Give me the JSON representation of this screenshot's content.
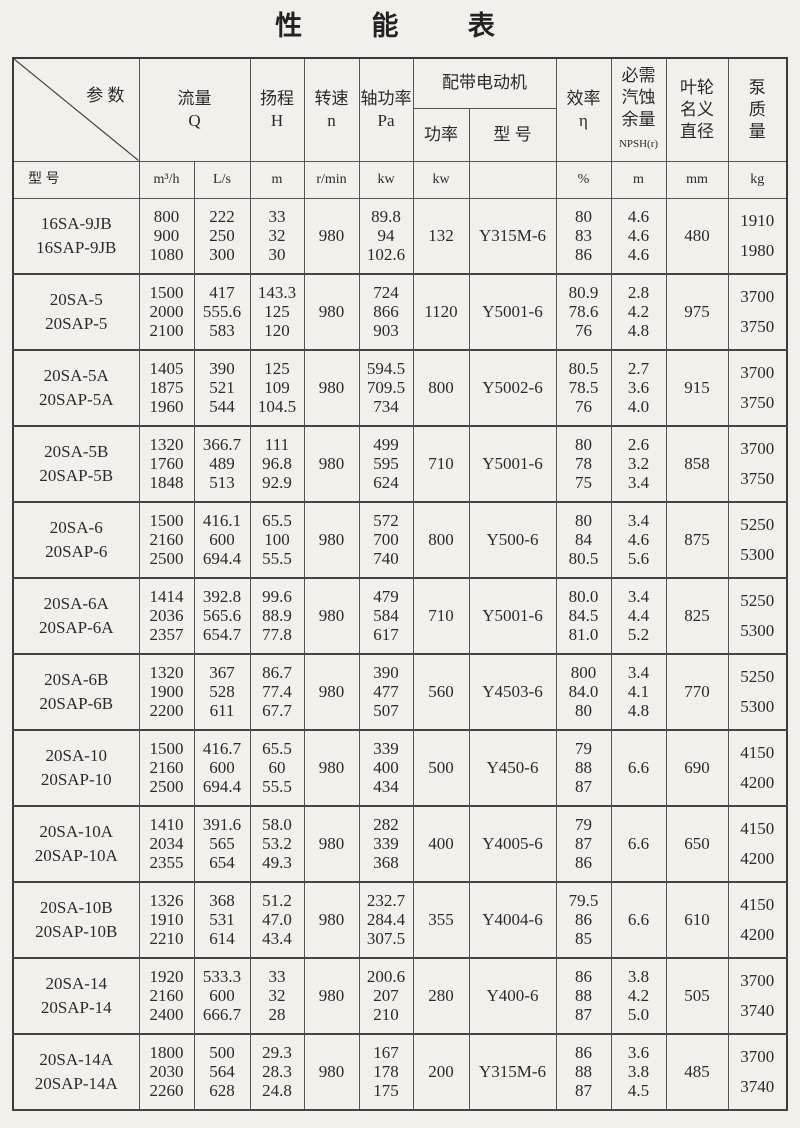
{
  "title": "性 能 表",
  "header": {
    "param": "参 数",
    "model": "型 号",
    "flow": "流量\nQ",
    "head": "扬程\nH",
    "speed": "转速\nn",
    "shaft_power": "轴功率\nPa",
    "motor": "配带电动机",
    "motor_power": "功率",
    "motor_model": "型 号",
    "efficiency": "效率\nη",
    "npsh": "必需\n汽蚀\n余量",
    "npsh_sub": "NPSH(r)",
    "impeller": "叶轮\n名义\n直径",
    "mass": "泵\n质\n量"
  },
  "units": [
    "m³/h",
    "L/s",
    "m",
    "r/min",
    "kw",
    "kw",
    "",
    "%",
    "m",
    "mm",
    "kg"
  ],
  "rows": [
    {
      "model": [
        "16SA-9JB",
        "16SAP-9JB"
      ],
      "q_m3h": [
        "800",
        "900",
        "1080"
      ],
      "q_ls": [
        "222",
        "250",
        "300"
      ],
      "head": [
        "33",
        "32",
        "30"
      ],
      "speed": "980",
      "power": [
        "89.8",
        "94",
        "102.6"
      ],
      "motor_kw": "132",
      "motor_model": "Y315M-6",
      "eff": [
        "80",
        "83",
        "86"
      ],
      "npsh": [
        "4.6",
        "4.6",
        "4.6"
      ],
      "impeller": "480",
      "mass": [
        "1910",
        "1980"
      ]
    },
    {
      "model": [
        "20SA-5",
        "20SAP-5"
      ],
      "q_m3h": [
        "1500",
        "2000",
        "2100"
      ],
      "q_ls": [
        "417",
        "555.6",
        "583"
      ],
      "head": [
        "143.3",
        "125",
        "120"
      ],
      "speed": "980",
      "power": [
        "724",
        "866",
        "903"
      ],
      "motor_kw": "1120",
      "motor_model": "Y5001-6",
      "eff": [
        "80.9",
        "78.6",
        "76"
      ],
      "npsh": [
        "2.8",
        "4.2",
        "4.8"
      ],
      "impeller": "975",
      "mass": [
        "3700",
        "3750"
      ]
    },
    {
      "model": [
        "20SA-5A",
        "20SAP-5A"
      ],
      "q_m3h": [
        "1405",
        "1875",
        "1960"
      ],
      "q_ls": [
        "390",
        "521",
        "544"
      ],
      "head": [
        "125",
        "109",
        "104.5"
      ],
      "speed": "980",
      "power": [
        "594.5",
        "709.5",
        "734"
      ],
      "motor_kw": "800",
      "motor_model": "Y5002-6",
      "eff": [
        "80.5",
        "78.5",
        "76"
      ],
      "npsh": [
        "2.7",
        "3.6",
        "4.0"
      ],
      "impeller": "915",
      "mass": [
        "3700",
        "3750"
      ]
    },
    {
      "model": [
        "20SA-5B",
        "20SAP-5B"
      ],
      "q_m3h": [
        "1320",
        "1760",
        "1848"
      ],
      "q_ls": [
        "366.7",
        "489",
        "513"
      ],
      "head": [
        "111",
        "96.8",
        "92.9"
      ],
      "speed": "980",
      "power": [
        "499",
        "595",
        "624"
      ],
      "motor_kw": "710",
      "motor_model": "Y5001-6",
      "eff": [
        "80",
        "78",
        "75"
      ],
      "npsh": [
        "2.6",
        "3.2",
        "3.4"
      ],
      "impeller": "858",
      "mass": [
        "3700",
        "3750"
      ]
    },
    {
      "model": [
        "20SA-6",
        "20SAP-6"
      ],
      "q_m3h": [
        "1500",
        "2160",
        "2500"
      ],
      "q_ls": [
        "416.1",
        "600",
        "694.4"
      ],
      "head": [
        "65.5",
        "100",
        "55.5"
      ],
      "speed": "980",
      "power": [
        "572",
        "700",
        "740"
      ],
      "motor_kw": "800",
      "motor_model": "Y500-6",
      "eff": [
        "80",
        "84",
        "80.5"
      ],
      "npsh": [
        "3.4",
        "4.6",
        "5.6"
      ],
      "impeller": "875",
      "mass": [
        "5250",
        "5300"
      ]
    },
    {
      "model": [
        "20SA-6A",
        "20SAP-6A"
      ],
      "q_m3h": [
        "1414",
        "2036",
        "2357"
      ],
      "q_ls": [
        "392.8",
        "565.6",
        "654.7"
      ],
      "head": [
        "99.6",
        "88.9",
        "77.8"
      ],
      "speed": "980",
      "power": [
        "479",
        "584",
        "617"
      ],
      "motor_kw": "710",
      "motor_model": "Y5001-6",
      "eff": [
        "80.0",
        "84.5",
        "81.0"
      ],
      "npsh": [
        "3.4",
        "4.4",
        "5.2"
      ],
      "impeller": "825",
      "mass": [
        "5250",
        "5300"
      ]
    },
    {
      "model": [
        "20SA-6B",
        "20SAP-6B"
      ],
      "q_m3h": [
        "1320",
        "1900",
        "2200"
      ],
      "q_ls": [
        "367",
        "528",
        "611"
      ],
      "head": [
        "86.7",
        "77.4",
        "67.7"
      ],
      "speed": "980",
      "power": [
        "390",
        "477",
        "507"
      ],
      "motor_kw": "560",
      "motor_model": "Y4503-6",
      "eff": [
        "800",
        "84.0",
        "80"
      ],
      "npsh": [
        "3.4",
        "4.1",
        "4.8"
      ],
      "impeller": "770",
      "mass": [
        "5250",
        "5300"
      ]
    },
    {
      "model": [
        "20SA-10",
        "20SAP-10"
      ],
      "q_m3h": [
        "1500",
        "2160",
        "2500"
      ],
      "q_ls": [
        "416.7",
        "600",
        "694.4"
      ],
      "head": [
        "65.5",
        "60",
        "55.5"
      ],
      "speed": "980",
      "power": [
        "339",
        "400",
        "434"
      ],
      "motor_kw": "500",
      "motor_model": "Y450-6",
      "eff": [
        "79",
        "88",
        "87"
      ],
      "npsh": [
        "6.6"
      ],
      "impeller": "690",
      "mass": [
        "4150",
        "4200"
      ]
    },
    {
      "model": [
        "20SA-10A",
        "20SAP-10A"
      ],
      "q_m3h": [
        "1410",
        "2034",
        "2355"
      ],
      "q_ls": [
        "391.6",
        "565",
        "654"
      ],
      "head": [
        "58.0",
        "53.2",
        "49.3"
      ],
      "speed": "980",
      "power": [
        "282",
        "339",
        "368"
      ],
      "motor_kw": "400",
      "motor_model": "Y4005-6",
      "eff": [
        "79",
        "87",
        "86"
      ],
      "npsh": [
        "6.6"
      ],
      "impeller": "650",
      "mass": [
        "4150",
        "4200"
      ]
    },
    {
      "model": [
        "20SA-10B",
        "20SAP-10B"
      ],
      "q_m3h": [
        "1326",
        "1910",
        "2210"
      ],
      "q_ls": [
        "368",
        "531",
        "614"
      ],
      "head": [
        "51.2",
        "47.0",
        "43.4"
      ],
      "speed": "980",
      "power": [
        "232.7",
        "284.4",
        "307.5"
      ],
      "motor_kw": "355",
      "motor_model": "Y4004-6",
      "eff": [
        "79.5",
        "86",
        "85"
      ],
      "npsh": [
        "6.6"
      ],
      "impeller": "610",
      "mass": [
        "4150",
        "4200"
      ]
    },
    {
      "model": [
        "20SA-14",
        "20SAP-14"
      ],
      "q_m3h": [
        "1920",
        "2160",
        "2400"
      ],
      "q_ls": [
        "533.3",
        "600",
        "666.7"
      ],
      "head": [
        "33",
        "32",
        "28"
      ],
      "speed": "980",
      "power": [
        "200.6",
        "207",
        "210"
      ],
      "motor_kw": "280",
      "motor_model": "Y400-6",
      "eff": [
        "86",
        "88",
        "87"
      ],
      "npsh": [
        "3.8",
        "4.2",
        "5.0"
      ],
      "impeller": "505",
      "mass": [
        "3700",
        "3740"
      ]
    },
    {
      "model": [
        "20SA-14A",
        "20SAP-14A"
      ],
      "q_m3h": [
        "1800",
        "2030",
        "2260"
      ],
      "q_ls": [
        "500",
        "564",
        "628"
      ],
      "head": [
        "29.3",
        "28.3",
        "24.8"
      ],
      "speed": "980",
      "power": [
        "167",
        "178",
        "175"
      ],
      "motor_kw": "200",
      "motor_model": "Y315M-6",
      "eff": [
        "86",
        "88",
        "87"
      ],
      "npsh": [
        "3.6",
        "3.8",
        "4.5"
      ],
      "impeller": "485",
      "mass": [
        "3700",
        "3740"
      ]
    }
  ]
}
